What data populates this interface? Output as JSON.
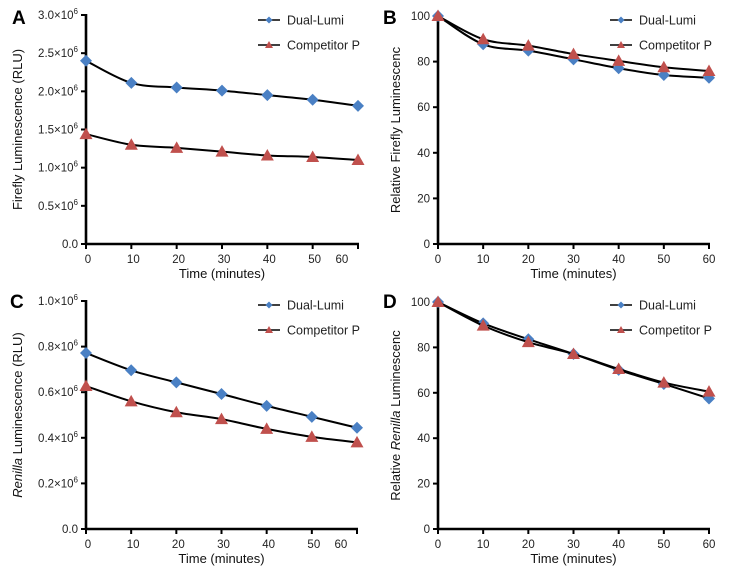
{
  "chart_data": [
    {
      "panel": "A",
      "type": "line",
      "title": "",
      "xlabel": "Time (minutes)",
      "ylabel": "Firefly Luminescence (RLU)",
      "ylabel_italic_prefix": "",
      "x": [
        0,
        10,
        20,
        30,
        40,
        50,
        60
      ],
      "xticks": [
        "0",
        "10",
        "20",
        "30",
        "40",
        "50",
        "60"
      ],
      "xlim": [
        0,
        60
      ],
      "yticks": [
        "0.0",
        "0.5×10⁶",
        "1.0×10⁶",
        "1.5×10⁶",
        "2.0×10⁶",
        "2.5×10⁶",
        "3.0×10⁶"
      ],
      "ytick_values": [
        0,
        500000,
        1000000,
        1500000,
        2000000,
        2500000,
        3000000
      ],
      "ylim": [
        0,
        3000000
      ],
      "grid": false,
      "legend_position": "top-right",
      "series": [
        {
          "name": "Dual-Lumi",
          "marker": "diamond",
          "color": "#4a80c4",
          "values": [
            2400000,
            2110000,
            2050000,
            2010000,
            1950000,
            1890000,
            1810000
          ]
        },
        {
          "name": "Competitor P",
          "marker": "triangle",
          "color": "#c0504d",
          "values": [
            1440000,
            1300000,
            1260000,
            1210000,
            1160000,
            1140000,
            1100000
          ]
        }
      ]
    },
    {
      "panel": "B",
      "type": "line",
      "title": "",
      "xlabel": "Time (minutes)",
      "ylabel": "Relative Firefly Luminescenc",
      "ylabel_italic_prefix": "",
      "x": [
        0,
        10,
        20,
        30,
        40,
        50,
        60
      ],
      "xticks": [
        "0",
        "10",
        "20",
        "30",
        "40",
        "50",
        "60"
      ],
      "xlim": [
        0,
        60
      ],
      "yticks": [
        "0",
        "20",
        "40",
        "60",
        "80",
        "100"
      ],
      "ytick_values": [
        0,
        20,
        40,
        60,
        80,
        100
      ],
      "ylim": [
        0,
        100
      ],
      "grid": false,
      "legend_position": "top-right",
      "series": [
        {
          "name": "Dual-Lumi",
          "marker": "diamond",
          "color": "#4a80c4",
          "values": [
            100,
            87.6,
            84.8,
            81.0,
            77.1,
            74.1,
            72.9
          ]
        },
        {
          "name": "Competitor P",
          "marker": "triangle",
          "color": "#c0504d",
          "values": [
            100,
            89.8,
            87.0,
            83.3,
            80.3,
            77.5,
            75.9
          ]
        }
      ]
    },
    {
      "panel": "C",
      "type": "line",
      "title": "",
      "xlabel": "Time (minutes)",
      "ylabel": " Luminescence (RLU)",
      "ylabel_italic_prefix": "Renilla",
      "x": [
        0,
        10,
        20,
        30,
        40,
        50,
        60
      ],
      "xticks": [
        "0",
        "10",
        "20",
        "30",
        "40",
        "50",
        "60"
      ],
      "xlim": [
        0,
        60
      ],
      "yticks": [
        "0.0",
        "0.2×10⁶",
        "0.4×10⁶",
        "0.6×10⁶",
        "0.8×10⁶",
        "1.0×10⁶"
      ],
      "ytick_values": [
        0,
        200000,
        400000,
        600000,
        800000,
        1000000
      ],
      "ylim": [
        0,
        1000000
      ],
      "grid": false,
      "legend_position": "top-right",
      "series": [
        {
          "name": "Dual-Lumi",
          "marker": "diamond",
          "color": "#4a80c4",
          "values": [
            772000,
            696000,
            643000,
            592000,
            540000,
            492000,
            444000
          ]
        },
        {
          "name": "Competitor P",
          "marker": "triangle",
          "color": "#c0504d",
          "values": [
            627000,
            560000,
            512000,
            482000,
            439000,
            404000,
            380000
          ]
        }
      ]
    },
    {
      "panel": "D",
      "type": "line",
      "title": "",
      "xlabel": "Time (minutes)",
      "ylabel": " Luminescenc",
      "ylabel_italic_prefix": "Renilla",
      "ylabel_lead": "Relative ",
      "x": [
        0,
        10,
        20,
        30,
        40,
        50,
        60
      ],
      "xticks": [
        "0",
        "10",
        "20",
        "30",
        "40",
        "50",
        "60"
      ],
      "xlim": [
        0,
        60
      ],
      "yticks": [
        "0",
        "20",
        "40",
        "60",
        "80",
        "100"
      ],
      "ytick_values": [
        0,
        20,
        40,
        60,
        80,
        100
      ],
      "ylim": [
        0,
        100
      ],
      "grid": false,
      "legend_position": "top-right",
      "series": [
        {
          "name": "Dual-Lumi",
          "marker": "diamond",
          "color": "#4a80c4",
          "values": [
            100,
            90.6,
            83.6,
            77.1,
            70.1,
            63.9,
            57.5
          ]
        },
        {
          "name": "Competitor P",
          "marker": "triangle",
          "color": "#c0504d",
          "values": [
            100,
            89.6,
            82.3,
            77.1,
            70.5,
            64.5,
            60.5
          ]
        }
      ]
    }
  ]
}
